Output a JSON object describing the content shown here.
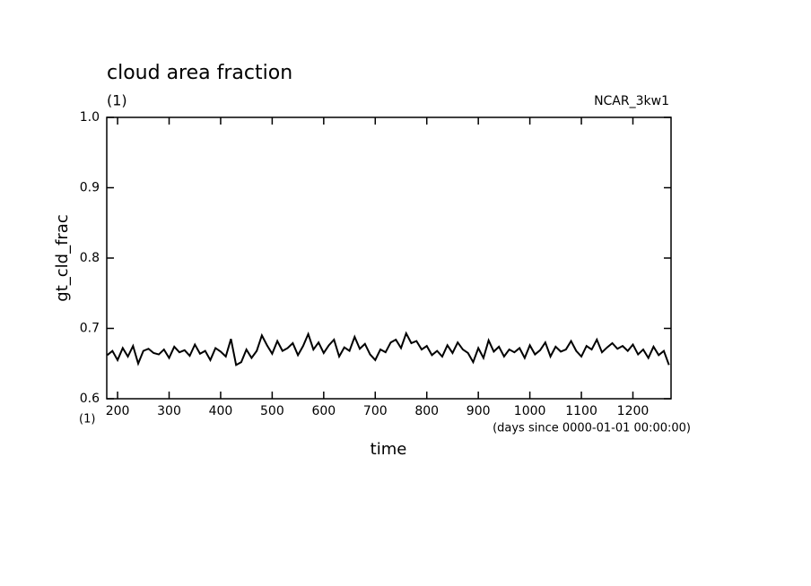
{
  "chart_data": {
    "type": "line",
    "title": "cloud area fraction",
    "subtitle": "(1)",
    "annotation_right": "NCAR_3kw1",
    "y_label": "gt_cld_frac",
    "x_label": "time",
    "x_unit_left": "(1)",
    "x_unit": "(days since 0000-01-01 00:00:00)",
    "xlim": [
      179,
      1274
    ],
    "ylim": [
      0.6,
      1
    ],
    "xticks": [
      200,
      300,
      400,
      500,
      600,
      700,
      800,
      900,
      1000,
      1100,
      1200
    ],
    "yticks": [
      0.6,
      0.7,
      0.8,
      0.9,
      {
        "value": 1,
        "label": "1.0"
      }
    ],
    "grid": false,
    "color": "#000000",
    "x": [
      180,
      190,
      200,
      210,
      220,
      230,
      240,
      250,
      260,
      270,
      280,
      290,
      300,
      310,
      320,
      330,
      340,
      350,
      360,
      370,
      380,
      390,
      400,
      410,
      420,
      430,
      440,
      450,
      460,
      470,
      480,
      490,
      500,
      510,
      520,
      530,
      540,
      550,
      560,
      570,
      580,
      590,
      600,
      610,
      620,
      630,
      640,
      650,
      660,
      670,
      680,
      690,
      700,
      710,
      720,
      730,
      740,
      750,
      760,
      770,
      780,
      790,
      800,
      810,
      820,
      830,
      840,
      850,
      860,
      870,
      880,
      890,
      900,
      910,
      920,
      930,
      940,
      950,
      960,
      970,
      980,
      990,
      1000,
      1010,
      1020,
      1030,
      1040,
      1050,
      1060,
      1070,
      1080,
      1090,
      1100,
      1110,
      1120,
      1130,
      1140,
      1150,
      1160,
      1170,
      1180,
      1190,
      1200,
      1210,
      1220,
      1230,
      1240,
      1250,
      1260,
      1270
    ],
    "values": [
      0.662,
      0.668,
      0.655,
      0.672,
      0.66,
      0.675,
      0.65,
      0.668,
      0.671,
      0.665,
      0.663,
      0.67,
      0.658,
      0.674,
      0.666,
      0.669,
      0.661,
      0.677,
      0.664,
      0.668,
      0.655,
      0.672,
      0.667,
      0.66,
      0.685,
      0.648,
      0.652,
      0.67,
      0.658,
      0.668,
      0.69,
      0.676,
      0.664,
      0.682,
      0.668,
      0.672,
      0.679,
      0.662,
      0.675,
      0.692,
      0.67,
      0.68,
      0.665,
      0.676,
      0.684,
      0.66,
      0.673,
      0.668,
      0.688,
      0.671,
      0.678,
      0.663,
      0.655,
      0.67,
      0.666,
      0.68,
      0.684,
      0.672,
      0.693,
      0.679,
      0.682,
      0.67,
      0.675,
      0.662,
      0.668,
      0.66,
      0.676,
      0.665,
      0.68,
      0.67,
      0.665,
      0.652,
      0.672,
      0.658,
      0.683,
      0.667,
      0.674,
      0.66,
      0.67,
      0.666,
      0.672,
      0.658,
      0.676,
      0.663,
      0.669,
      0.68,
      0.66,
      0.674,
      0.667,
      0.67,
      0.682,
      0.668,
      0.66,
      0.675,
      0.67,
      0.684,
      0.666,
      0.673,
      0.679,
      0.671,
      0.675,
      0.668,
      0.677,
      0.663,
      0.67,
      0.658,
      0.674,
      0.662,
      0.668,
      0.648
    ]
  }
}
